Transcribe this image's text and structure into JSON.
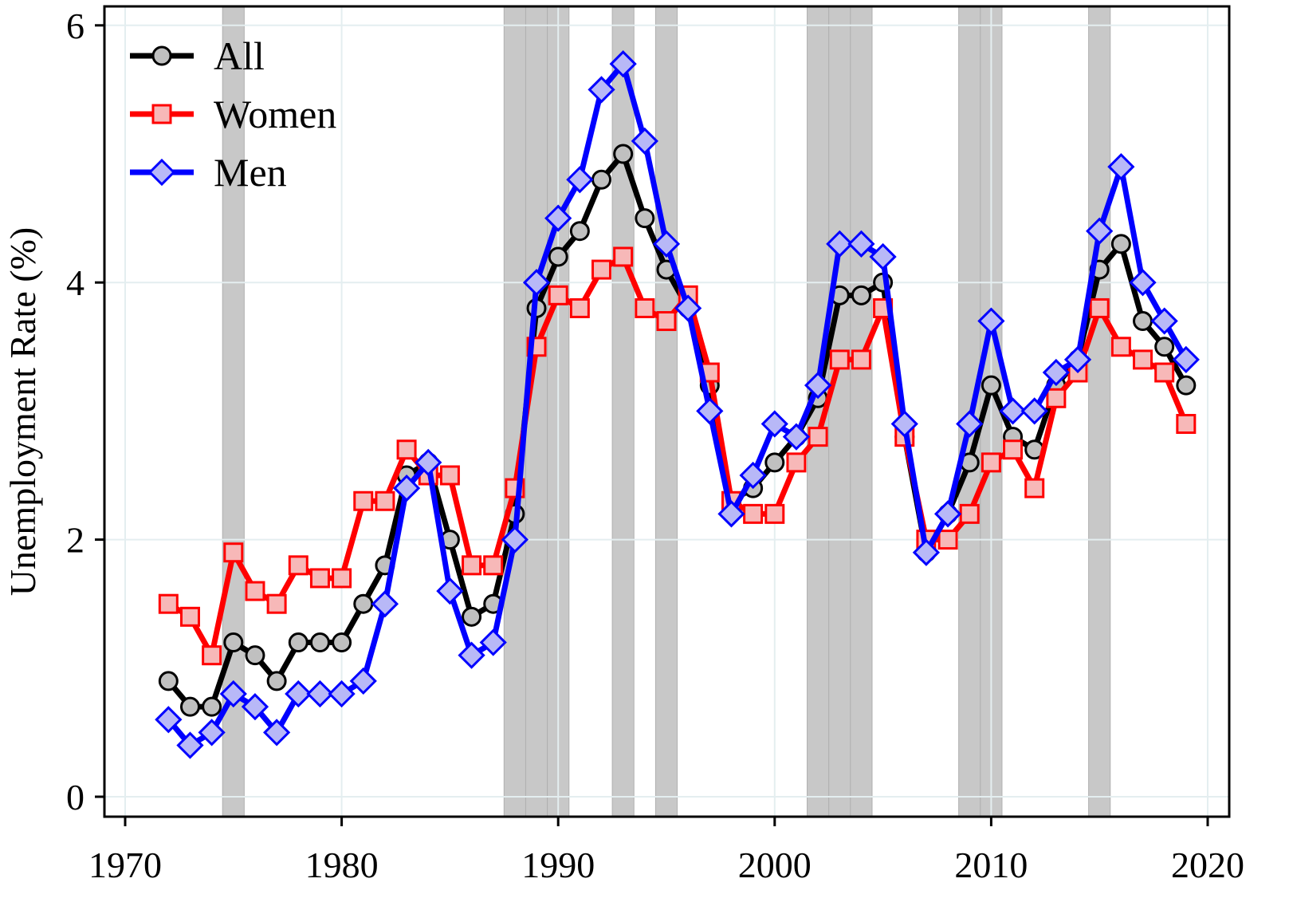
{
  "chart_data": {
    "type": "line",
    "title": "",
    "xlabel": "",
    "ylabel": "Unemployment Rate (%)",
    "xlim": [
      1969,
      2021
    ],
    "ylim": [
      -0.15,
      6.15
    ],
    "xticks": [
      1970,
      1980,
      1990,
      2000,
      2010,
      2020
    ],
    "yticks": [
      0,
      2,
      4,
      6
    ],
    "grid": true,
    "legend": "top-left",
    "shaded_years": [
      1975,
      1988,
      1989,
      1990,
      1993,
      1995,
      2002,
      2003,
      2004,
      2009,
      2010,
      2015
    ],
    "x": [
      1972,
      1973,
      1974,
      1975,
      1976,
      1977,
      1978,
      1979,
      1980,
      1981,
      1982,
      1983,
      1984,
      1985,
      1986,
      1987,
      1988,
      1989,
      1990,
      1991,
      1992,
      1993,
      1994,
      1995,
      1996,
      1997,
      1998,
      1999,
      2000,
      2001,
      2002,
      2003,
      2004,
      2005,
      2006,
      2007,
      2008,
      2009,
      2010,
      2011,
      2012,
      2013,
      2014,
      2015,
      2016,
      2017,
      2018,
      2019
    ],
    "series": [
      {
        "name": "All",
        "color": "#000000",
        "marker": "circle",
        "marker_fill": "#c0c0c0",
        "values": [
          0.9,
          0.7,
          0.7,
          1.2,
          1.1,
          0.9,
          1.2,
          1.2,
          1.2,
          1.5,
          1.8,
          2.5,
          2.6,
          2.0,
          1.4,
          1.5,
          2.2,
          3.8,
          4.2,
          4.4,
          4.8,
          5.0,
          4.5,
          4.1,
          3.8,
          3.2,
          2.3,
          2.4,
          2.6,
          2.8,
          3.1,
          3.9,
          3.9,
          4.0,
          2.8,
          1.9,
          2.2,
          2.6,
          3.2,
          2.8,
          2.7,
          3.2,
          3.4,
          4.1,
          4.3,
          3.7,
          3.5,
          3.2
        ]
      },
      {
        "name": "Women",
        "color": "#ff0000",
        "marker": "square",
        "marker_fill": "#f7b8b8",
        "values": [
          1.5,
          1.4,
          1.1,
          1.9,
          1.6,
          1.5,
          1.8,
          1.7,
          1.7,
          2.3,
          2.3,
          2.7,
          2.5,
          2.5,
          1.8,
          1.8,
          2.4,
          3.5,
          3.9,
          3.8,
          4.1,
          4.2,
          3.8,
          3.7,
          3.9,
          3.3,
          2.3,
          2.2,
          2.2,
          2.6,
          2.8,
          3.4,
          3.4,
          3.8,
          2.8,
          2.0,
          2.0,
          2.2,
          2.6,
          2.7,
          2.4,
          3.1,
          3.3,
          3.8,
          3.5,
          3.4,
          3.3,
          2.9
        ]
      },
      {
        "name": "Men",
        "color": "#0000ff",
        "marker": "diamond",
        "marker_fill": "#b8b8f7",
        "values": [
          0.6,
          0.4,
          0.5,
          0.8,
          0.7,
          0.5,
          0.8,
          0.8,
          0.8,
          0.9,
          1.5,
          2.4,
          2.6,
          1.6,
          1.1,
          1.2,
          2.0,
          4.0,
          4.5,
          4.8,
          5.5,
          5.7,
          5.1,
          4.3,
          3.8,
          3.0,
          2.2,
          2.5,
          2.9,
          2.8,
          3.2,
          4.3,
          4.3,
          4.2,
          2.9,
          1.9,
          2.2,
          2.9,
          3.7,
          3.0,
          3.0,
          3.3,
          3.4,
          4.4,
          4.9,
          4.0,
          3.7,
          3.4
        ]
      }
    ]
  }
}
